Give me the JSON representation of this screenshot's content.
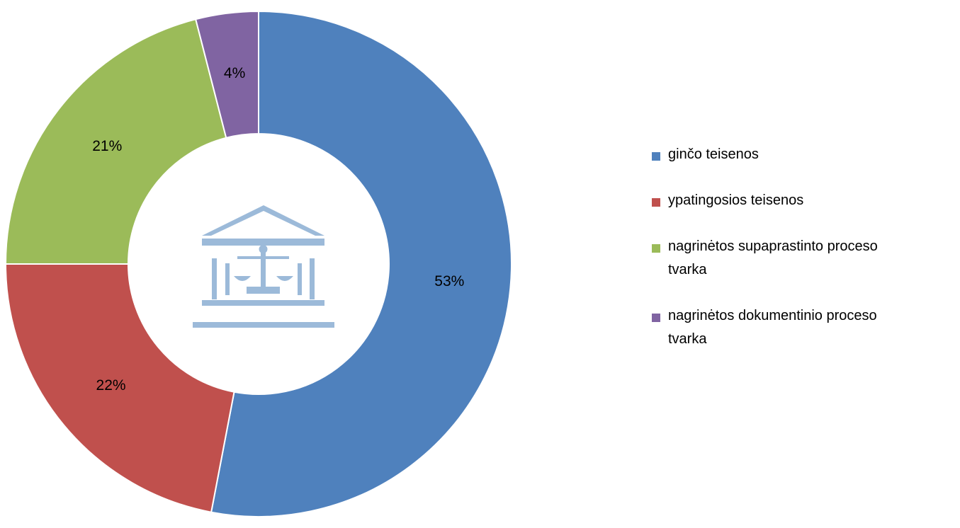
{
  "chart_data": {
    "type": "donut",
    "categories": [
      "ginčo teisenos",
      "ypatingosios teisenos",
      "nagrinėtos supaprastinto proceso tvarka",
      "nagrinėtos dokumentinio proceso tvarka"
    ],
    "values": [
      53,
      22,
      21,
      4
    ],
    "value_labels": [
      "53%",
      "22%",
      "21%",
      "4%"
    ],
    "colors": [
      "#4f81bd",
      "#c0504d",
      "#9bbb59",
      "#8064a2"
    ],
    "legend": "right"
  }
}
